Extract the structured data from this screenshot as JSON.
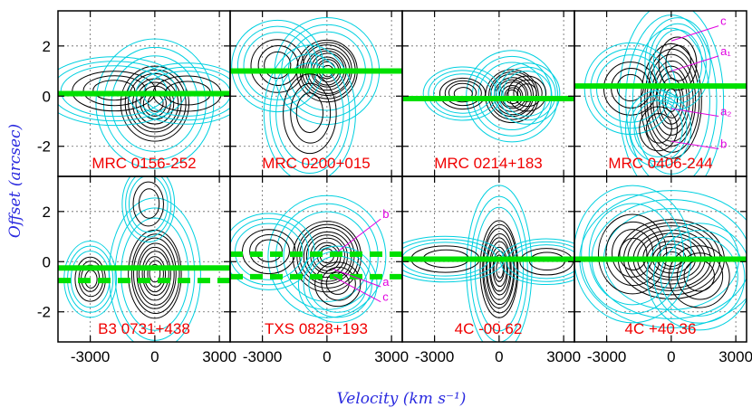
{
  "chart_data": {
    "type": "contour-grid",
    "xlabel": "Velocity (km s⁻¹)",
    "ylabel": "Offset (arcsec)",
    "xlim": [
      -4500,
      3500
    ],
    "ylim": [
      -3.2,
      3.4
    ],
    "x_ticks": [
      -3000,
      0,
      3000
    ],
    "y_ticks": [
      -2,
      0,
      2
    ],
    "grid": true,
    "colors": {
      "contour_outer": "#00d0e0",
      "contour_inner": "#000000",
      "slit_line": "#00e000",
      "panel_label": "#f00000",
      "annotation": "#e000e0",
      "axis_title": "#2a2adf"
    },
    "panels": [
      {
        "label": "MRC 0156-252",
        "solid_lines": [
          0.1
        ],
        "dashed_lines": [],
        "blobs": [
          [
            0,
            -0.3,
            900,
            0.85,
            8
          ],
          [
            -1900,
            0.2,
            1100,
            0.45,
            3
          ],
          [
            1500,
            0.1,
            900,
            0.4,
            2
          ]
        ]
      },
      {
        "label": "MRC 0200+015",
        "solid_lines": [
          1.0
        ],
        "dashed_lines": [],
        "blobs": [
          [
            0,
            1.0,
            800,
            0.7,
            10
          ],
          [
            -2300,
            1.2,
            700,
            0.6,
            3
          ],
          [
            -800,
            -0.7,
            700,
            0.9,
            3
          ]
        ]
      },
      {
        "label": "MRC 0214+183",
        "solid_lines": [
          -0.1
        ],
        "dashed_lines": [],
        "blobs": [
          [
            600,
            0.0,
            700,
            0.6,
            9
          ],
          [
            -1700,
            0.1,
            600,
            0.35,
            4
          ],
          [
            1300,
            0.1,
            500,
            0.4,
            3
          ]
        ]
      },
      {
        "label": "MRC 0406-244",
        "solid_lines": [
          0.4
        ],
        "dashed_lines": [],
        "blobs": [
          [
            0,
            -0.2,
            800,
            1.3,
            9
          ],
          [
            -1900,
            0.3,
            700,
            0.6,
            3
          ],
          [
            -600,
            -1.3,
            500,
            0.5,
            2
          ],
          [
            300,
            1.3,
            500,
            0.6,
            2
          ]
        ],
        "annotations": [
          {
            "text": "c",
            "x": 0,
            "y": 2.2,
            "lx": 2200,
            "ly": 2.8
          },
          {
            "text": "a₁",
            "x": 0,
            "y": 1.0,
            "lx": 2200,
            "ly": 1.6
          },
          {
            "text": "a₂",
            "x": 0,
            "y": -0.5,
            "lx": 2200,
            "ly": -0.8
          },
          {
            "text": "b",
            "x": 0,
            "y": -1.8,
            "lx": 2200,
            "ly": -2.1
          }
        ]
      },
      {
        "label": "B3 0731+438",
        "solid_lines": [
          -0.25
        ],
        "dashed_lines": [
          -0.75
        ],
        "blobs": [
          [
            0,
            -0.5,
            700,
            1.0,
            9
          ],
          [
            -3000,
            -0.7,
            400,
            0.5,
            4
          ],
          [
            -300,
            2.3,
            400,
            0.5,
            2
          ]
        ]
      },
      {
        "label": "TXS 0828+193",
        "solid_lines": [],
        "dashed_lines": [
          0.3,
          -0.6
        ],
        "blobs": [
          [
            0,
            0.2,
            900,
            0.8,
            9
          ],
          [
            -2700,
            0.4,
            700,
            0.5,
            3
          ],
          [
            500,
            -0.9,
            600,
            0.5,
            3
          ]
        ],
        "annotations": [
          {
            "text": "b",
            "x": 500,
            "y": 0.4,
            "lx": 2500,
            "ly": 1.7
          },
          {
            "text": "a",
            "x": 300,
            "y": -0.3,
            "lx": 2500,
            "ly": -1.0
          },
          {
            "text": "c",
            "x": 300,
            "y": -0.6,
            "lx": 2500,
            "ly": -1.6
          }
        ]
      },
      {
        "label": "4C -00.62",
        "solid_lines": [
          0.1
        ],
        "dashed_lines": [],
        "blobs": [
          [
            0,
            -0.3,
            500,
            1.1,
            10
          ],
          [
            -2500,
            0.1,
            900,
            0.3,
            2
          ],
          [
            2200,
            0.0,
            700,
            0.3,
            2
          ]
        ]
      },
      {
        "label": "4C +40.36",
        "solid_lines": [
          0.1
        ],
        "dashed_lines": [],
        "blobs": [
          [
            0,
            0.1,
            1400,
            0.9,
            10
          ],
          [
            -1800,
            0.3,
            900,
            0.9,
            4
          ],
          [
            1300,
            -0.6,
            800,
            0.7,
            3
          ]
        ]
      }
    ]
  }
}
